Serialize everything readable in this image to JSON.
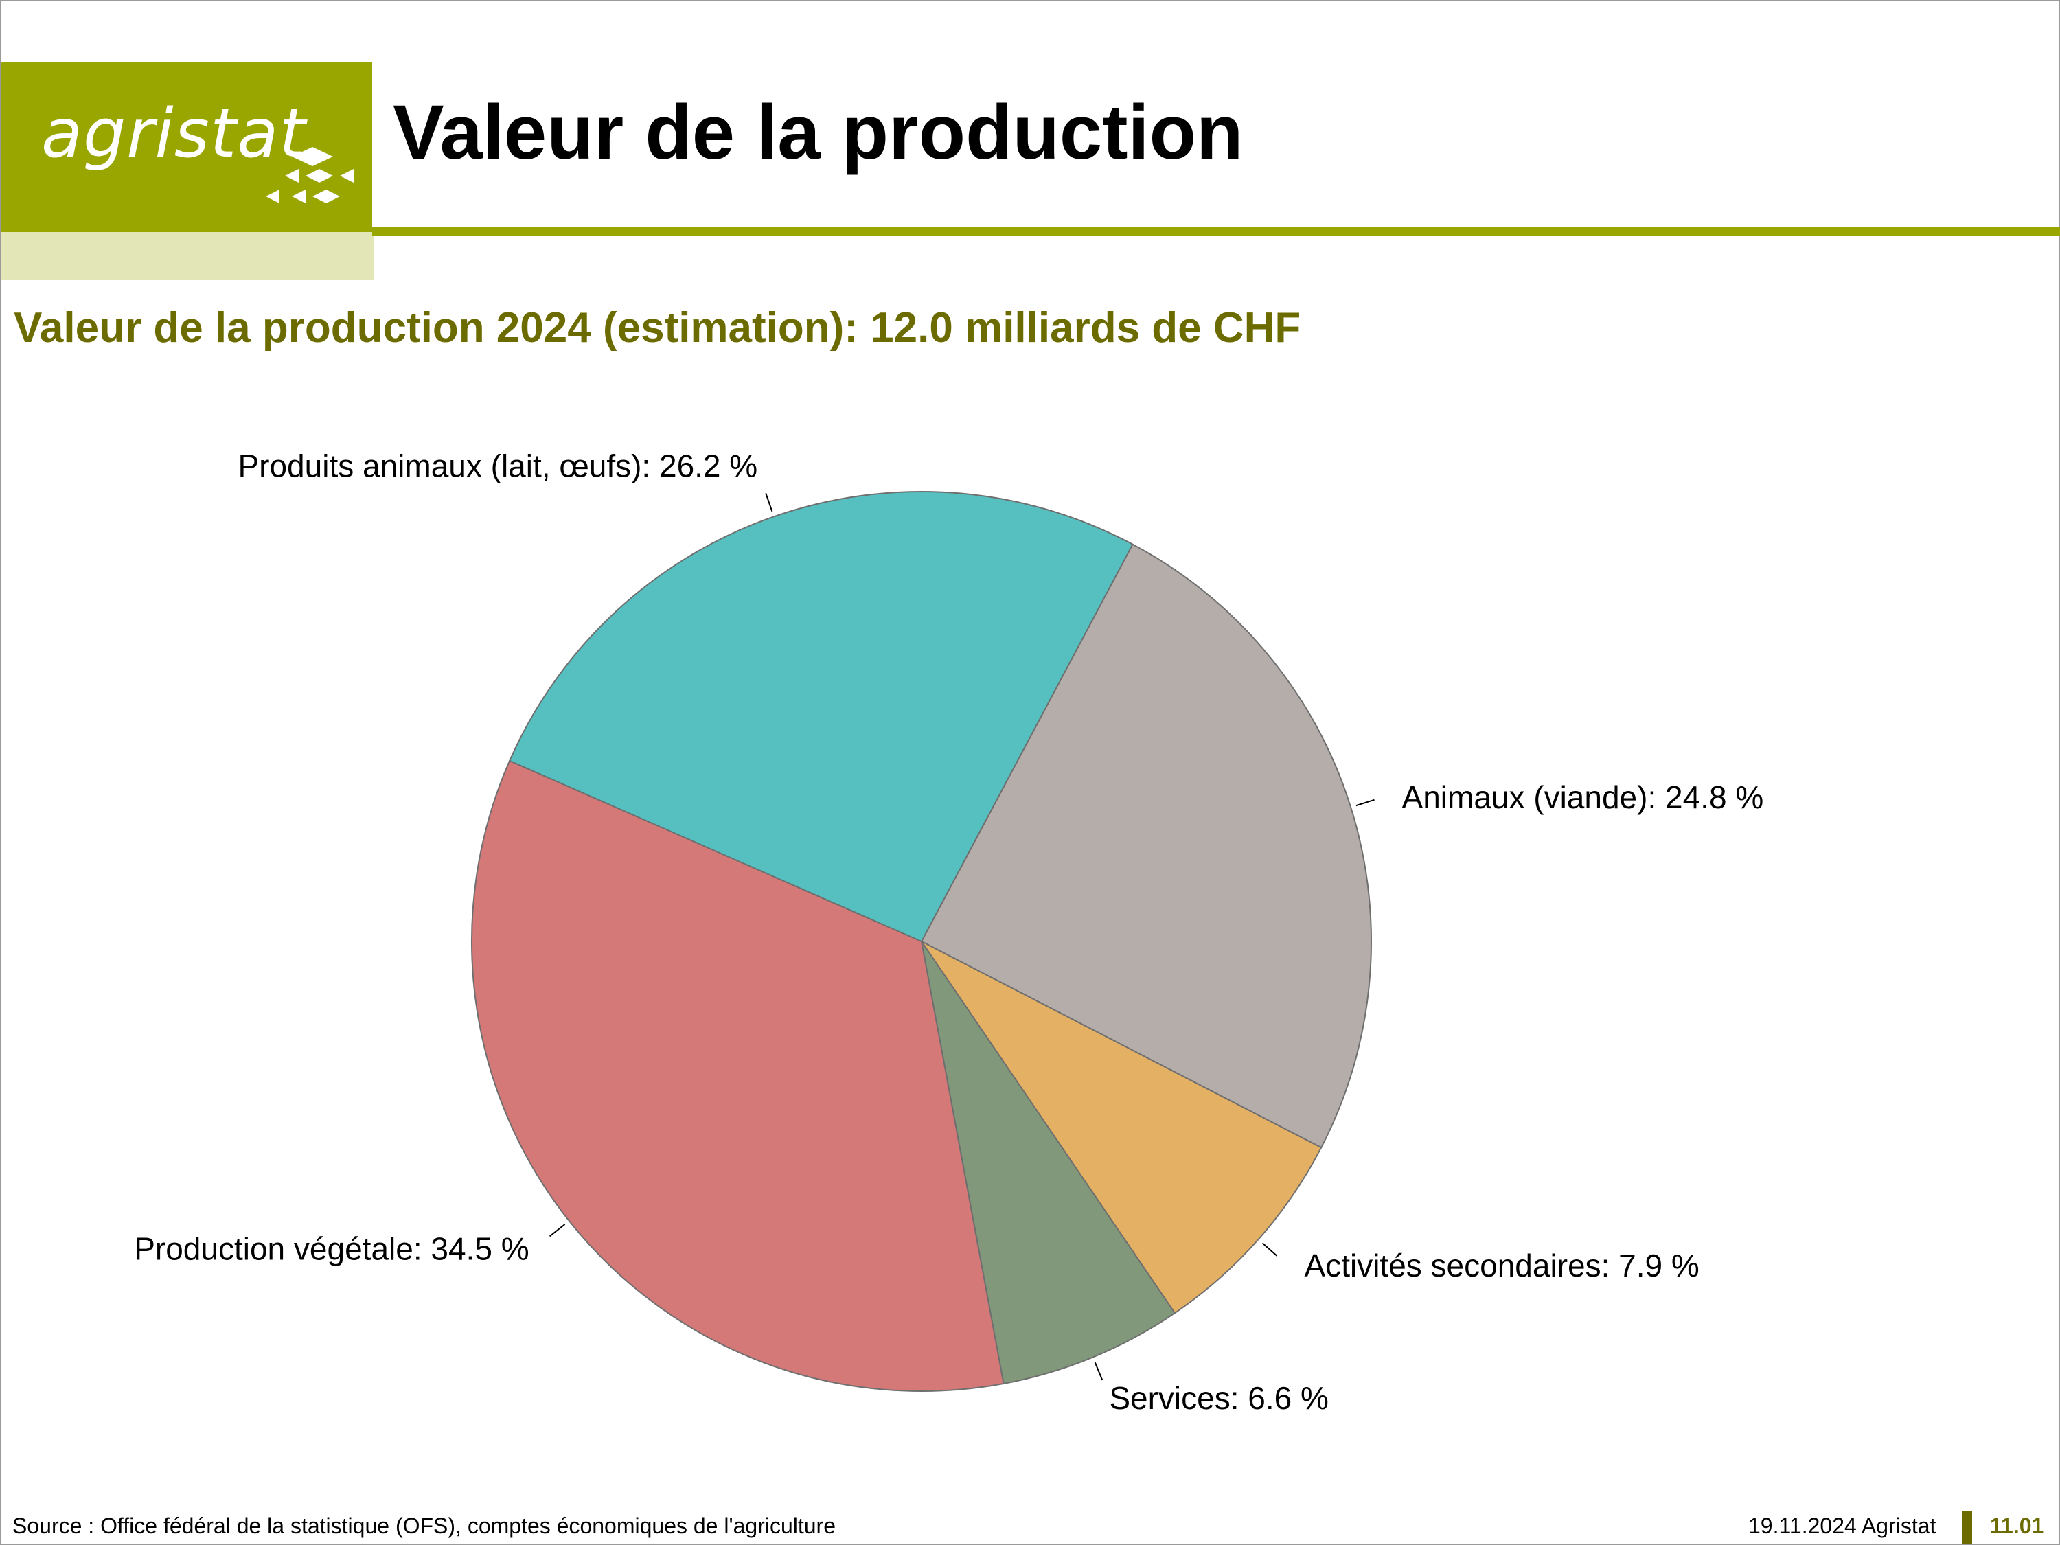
{
  "header": {
    "logo_text": "agristat",
    "title": "Valeur de la production"
  },
  "subtitle": "Valeur de la production 2024 (estimation): 12.0 milliards de CHF",
  "footer": {
    "source": "Source : Office fédéral de la statistique (OFS), comptes économiques de l'agriculture",
    "date": "19.11.2024 Agristat",
    "page": "11.01"
  },
  "colors": {
    "brand": "#9aa600",
    "brand_light": "#e3e6b7",
    "subtitle": "#6b6b00"
  },
  "chart_data": {
    "type": "pie",
    "title": "Valeur de la production 2024 (estimation): 12.0 milliards de CHF",
    "unit": "%",
    "start_angle_deg": -62,
    "direction": "clockwise",
    "slices": [
      {
        "name": "Animaux (viande)",
        "value": 24.8,
        "label": "Animaux (viande): 24.8 %",
        "color": "#b5adaa"
      },
      {
        "name": "Activités secondaires",
        "value": 7.9,
        "label": "Activités secondaires: 7.9 %",
        "color": "#e4b063"
      },
      {
        "name": "Services",
        "value": 6.6,
        "label": "Services: 6.6 %",
        "color": "#81997a"
      },
      {
        "name": "Production végétale",
        "value": 34.5,
        "label": "Production végétale: 34.5 %",
        "color": "#d47878"
      },
      {
        "name": "Produits animaux (lait, œufs)",
        "value": 26.2,
        "label": "Produits animaux (lait, œufs): 26.2 %",
        "color": "#56bfbf"
      }
    ]
  }
}
